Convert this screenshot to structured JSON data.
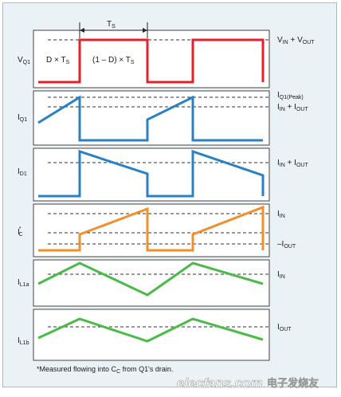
{
  "period_label": "T",
  "period_sub": "S",
  "segments": {
    "on_pre": "D × T",
    "on_sub": "S",
    "off_pre": "(1 – D) × T",
    "off_sub": "S"
  },
  "panels": [
    {
      "id": "vq1",
      "name": "V",
      "sub": "Q1",
      "color": "#e8202a"
    },
    {
      "id": "iq1",
      "name": "I",
      "sub": "Q1",
      "color": "#2a80c4"
    },
    {
      "id": "id1",
      "name": "I",
      "sub": "D1",
      "color": "#2a80c4"
    },
    {
      "id": "icc",
      "name": "I",
      "sup": "*",
      "sub": "C",
      "color": "#f0902a"
    },
    {
      "id": "il1a",
      "name": "I",
      "sub": "L1a",
      "color": "#4cba48"
    },
    {
      "id": "il1b",
      "name": "I",
      "sub": "L1b",
      "color": "#4cba48"
    }
  ],
  "right_labels": {
    "vin_vout": {
      "p1": "V",
      "s1": "IN",
      "mid": " + V",
      "s2": "OUT"
    },
    "iq1_peak": {
      "p1": "I",
      "s1": "Q1(Peak)"
    },
    "iin_iout_1": {
      "p1": "I",
      "s1": "IN",
      "mid": " + I",
      "s2": "OUT"
    },
    "iin_iout_2": {
      "p1": "I",
      "s1": "IN",
      "mid": " + I",
      "s2": "OUT"
    },
    "iin_c": {
      "p1": "I",
      "s1": "IN"
    },
    "neg_iout": {
      "p1": "–I",
      "s1": "OUT"
    },
    "iin_l": {
      "p1": "I",
      "s1": "IN"
    },
    "iout_l": {
      "p1": "I",
      "s1": "OUT"
    }
  },
  "footnote": {
    "pre": "*Measured flowing into C",
    "sub": "C",
    "post": " from Q1's drain."
  },
  "watermark": {
    "site": "elecfans.com",
    "cn": "电子发烧友"
  }
}
